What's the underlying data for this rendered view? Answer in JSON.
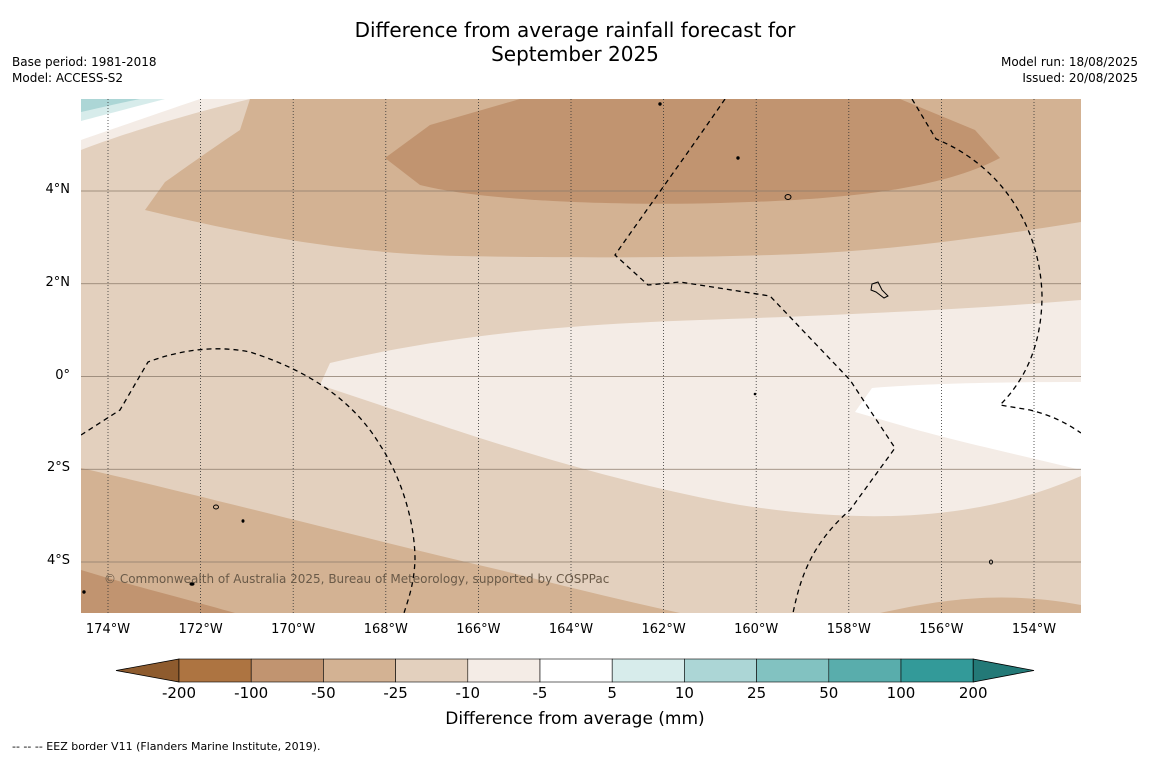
{
  "title_line1": "Difference from average rainfall forecast for",
  "title_line2": "September 2025",
  "meta_left": {
    "base_period": "Base period: 1981-2018",
    "model": "Model: ACCESS-S2"
  },
  "meta_right": {
    "model_run": "Model run: 18/08/2025",
    "issued": "Issued: 20/08/2025"
  },
  "copyright": "© Commonwealth of Australia 2025, Bureau of Meteorology, supported by COSPPac",
  "x_ticks": [
    "174°W",
    "172°W",
    "170°W",
    "168°W",
    "166°W",
    "164°W",
    "162°W",
    "160°W",
    "158°W",
    "156°W",
    "154°W"
  ],
  "y_ticks": [
    "4°N",
    "2°N",
    "0°",
    "2°S",
    "4°S"
  ],
  "colorbar": {
    "labels": [
      "-200",
      "-100",
      "-50",
      "-25",
      "-10",
      "-5",
      "5",
      "10",
      "25",
      "50",
      "100",
      "200"
    ],
    "colors": [
      "#8e5b2e",
      "#ad7441",
      "#c19470",
      "#d3b293",
      "#e3d0be",
      "#f4ece6",
      "#ffffff",
      "#d7eceb",
      "#acd6d6",
      "#82c2c1",
      "#59adac",
      "#339a99",
      "#237977"
    ],
    "title": "Difference from average (mm)"
  },
  "footer": "--  --  -- EEZ border V11 (Flanders Marine Institute, 2019)."
}
